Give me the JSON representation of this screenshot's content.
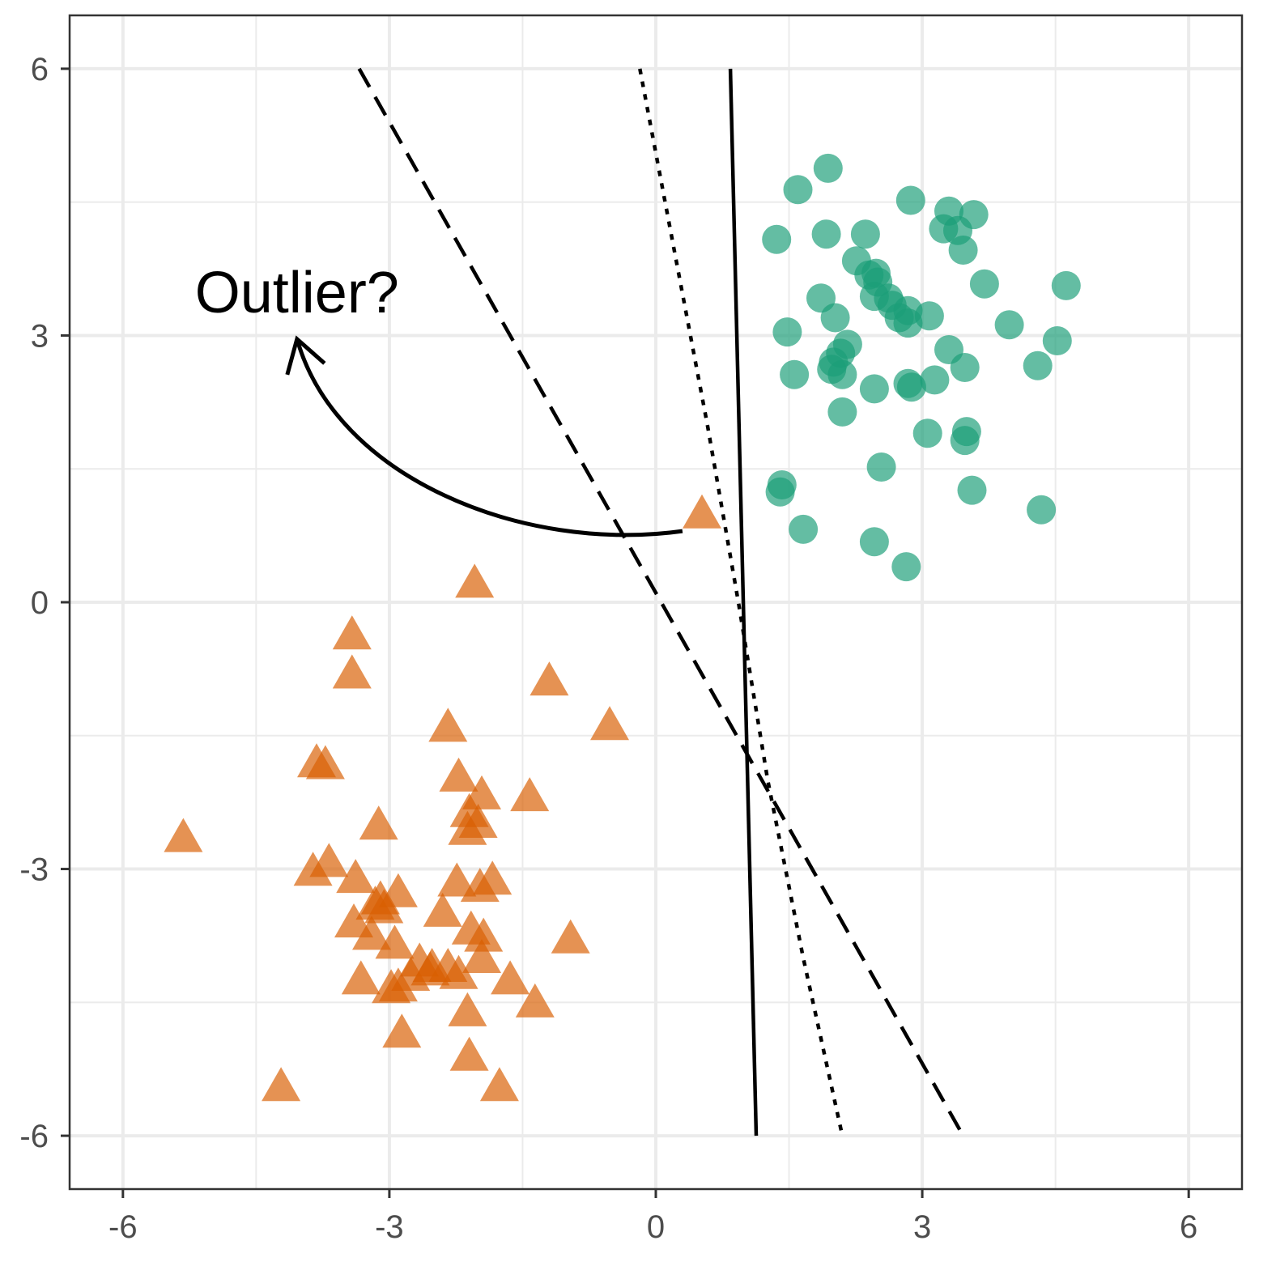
{
  "chart_data": {
    "type": "scatter",
    "title": "",
    "xlabel": "",
    "ylabel": "",
    "xlim": [
      -6.6,
      6.6
    ],
    "ylim": [
      -6.6,
      6.6
    ],
    "x_ticks": [
      -6,
      -3,
      0,
      3,
      6
    ],
    "y_ticks": [
      -6,
      -3,
      0,
      3,
      6
    ],
    "x_tick_labels": [
      "-6",
      "-3",
      "0",
      "3",
      "6"
    ],
    "y_tick_labels": [
      "-6",
      "-3",
      "0",
      "3",
      "6"
    ],
    "grid": true,
    "colors": {
      "circle_class": "#1b9e77",
      "triangle_class": "#d95f02",
      "grid": "#ebebeb",
      "border": "#333333",
      "line": "#000000"
    },
    "series": [
      {
        "marker": "circle",
        "points": [
          [
            1.94,
            4.88
          ],
          [
            1.6,
            4.64
          ],
          [
            2.87,
            4.52
          ],
          [
            3.3,
            4.4
          ],
          [
            3.58,
            4.36
          ],
          [
            1.36,
            4.08
          ],
          [
            1.92,
            4.14
          ],
          [
            2.36,
            4.14
          ],
          [
            3.24,
            4.2
          ],
          [
            3.4,
            4.18
          ],
          [
            3.46,
            3.96
          ],
          [
            2.26,
            3.84
          ],
          [
            2.4,
            3.68
          ],
          [
            2.48,
            3.7
          ],
          [
            2.5,
            3.6
          ],
          [
            3.7,
            3.58
          ],
          [
            4.62,
            3.56
          ],
          [
            1.86,
            3.42
          ],
          [
            2.46,
            3.44
          ],
          [
            2.62,
            3.42
          ],
          [
            2.66,
            3.34
          ],
          [
            2.84,
            3.28
          ],
          [
            2.74,
            3.2
          ],
          [
            2.02,
            3.2
          ],
          [
            3.08,
            3.22
          ],
          [
            2.84,
            3.14
          ],
          [
            3.98,
            3.12
          ],
          [
            1.48,
            3.04
          ],
          [
            4.52,
            2.94
          ],
          [
            2.16,
            2.9
          ],
          [
            2.08,
            2.8
          ],
          [
            2.0,
            2.7
          ],
          [
            3.3,
            2.84
          ],
          [
            3.48,
            2.64
          ],
          [
            4.3,
            2.66
          ],
          [
            1.56,
            2.56
          ],
          [
            1.98,
            2.62
          ],
          [
            2.1,
            2.56
          ],
          [
            2.46,
            2.4
          ],
          [
            2.84,
            2.46
          ],
          [
            3.14,
            2.5
          ],
          [
            2.88,
            2.42
          ],
          [
            2.1,
            2.14
          ],
          [
            3.06,
            1.9
          ],
          [
            3.5,
            1.92
          ],
          [
            3.48,
            1.82
          ],
          [
            2.54,
            1.52
          ],
          [
            1.42,
            1.32
          ],
          [
            1.4,
            1.24
          ],
          [
            3.56,
            1.26
          ],
          [
            4.34,
            1.04
          ],
          [
            1.66,
            0.82
          ],
          [
            2.46,
            0.68
          ],
          [
            2.82,
            0.4
          ]
        ]
      },
      {
        "marker": "triangle",
        "points": [
          [
            0.52,
            1.04
          ],
          [
            -2.04,
            0.26
          ],
          [
            -3.42,
            -0.32
          ],
          [
            -3.42,
            -0.76
          ],
          [
            -1.2,
            -0.84
          ],
          [
            -2.34,
            -1.36
          ],
          [
            -0.52,
            -1.34
          ],
          [
            -3.82,
            -1.76
          ],
          [
            -3.72,
            -1.78
          ],
          [
            -2.22,
            -1.92
          ],
          [
            -1.96,
            -2.12
          ],
          [
            -1.42,
            -2.14
          ],
          [
            -2.1,
            -2.32
          ],
          [
            -2.0,
            -2.44
          ],
          [
            -2.12,
            -2.52
          ],
          [
            -3.12,
            -2.46
          ],
          [
            -5.32,
            -2.6
          ],
          [
            -3.68,
            -2.88
          ],
          [
            -3.86,
            -2.98
          ],
          [
            -3.38,
            -3.06
          ],
          [
            -1.84,
            -3.08
          ],
          [
            -2.24,
            -3.1
          ],
          [
            -1.98,
            -3.16
          ],
          [
            -2.9,
            -3.22
          ],
          [
            -3.16,
            -3.36
          ],
          [
            -3.1,
            -3.3
          ],
          [
            -3.06,
            -3.4
          ],
          [
            -2.4,
            -3.44
          ],
          [
            -3.4,
            -3.56
          ],
          [
            -2.08,
            -3.64
          ],
          [
            -3.2,
            -3.7
          ],
          [
            -1.94,
            -3.72
          ],
          [
            -0.96,
            -3.74
          ],
          [
            -2.94,
            -3.8
          ],
          [
            -1.96,
            -3.96
          ],
          [
            -2.66,
            -4.0
          ],
          [
            -2.52,
            -4.06
          ],
          [
            -2.34,
            -4.06
          ],
          [
            -2.54,
            -4.1
          ],
          [
            -2.76,
            -4.16
          ],
          [
            -2.22,
            -4.14
          ],
          [
            -3.32,
            -4.2
          ],
          [
            -1.64,
            -4.2
          ],
          [
            -2.9,
            -4.28
          ],
          [
            -2.98,
            -4.3
          ],
          [
            -1.36,
            -4.46
          ],
          [
            -2.12,
            -4.56
          ],
          [
            -2.86,
            -4.8
          ],
          [
            -2.1,
            -5.06
          ],
          [
            -4.22,
            -5.4
          ],
          [
            -1.76,
            -5.4
          ]
        ]
      }
    ],
    "lines": [
      {
        "style": "solid",
        "points": [
          [
            0.84,
            6.0
          ],
          [
            1.13,
            -6.0
          ]
        ]
      },
      {
        "style": "dotted",
        "points": [
          [
            -0.18,
            6.0
          ],
          [
            0.2,
            4.0
          ],
          [
            0.58,
            2.0
          ],
          [
            0.93,
            0.0
          ],
          [
            1.26,
            -2.0
          ],
          [
            1.66,
            -4.0
          ],
          [
            2.1,
            -6.0
          ]
        ]
      },
      {
        "style": "dashed",
        "points": [
          [
            -3.34,
            6.0
          ],
          [
            3.46,
            -6.0
          ]
        ]
      }
    ],
    "annotation": {
      "text": "Outlier?",
      "x": -4.04,
      "y": 3.26,
      "arrow": [
        [
          0.3,
          0.8
        ],
        [
          -1.5,
          0.55
        ],
        [
          -3.6,
          1.4
        ],
        [
          -4.04,
          2.96
        ]
      ]
    }
  }
}
